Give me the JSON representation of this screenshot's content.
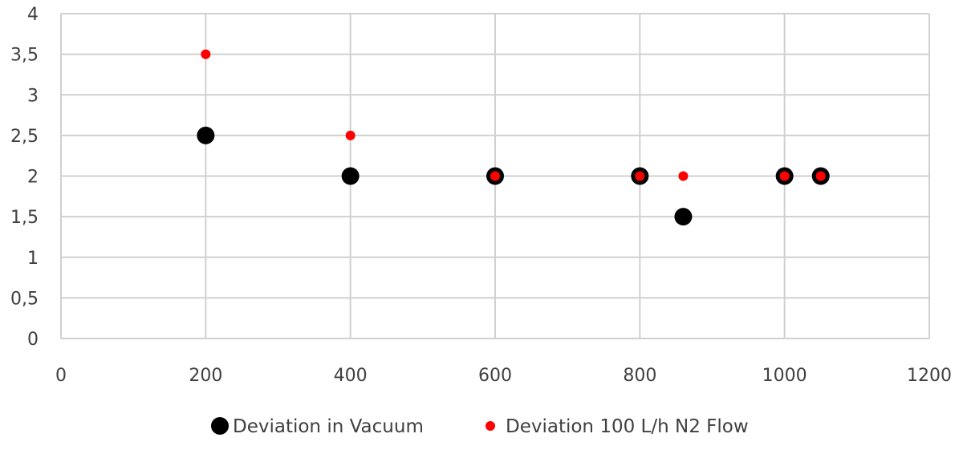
{
  "chart_data": {
    "type": "scatter",
    "title": "",
    "xlabel": "",
    "ylabel": "",
    "xlim": [
      0,
      1200
    ],
    "ylim": [
      0,
      4
    ],
    "x_ticks": [
      0,
      200,
      400,
      600,
      800,
      1000,
      1200
    ],
    "x_tick_labels": [
      "0",
      "200",
      "400",
      "600",
      "800",
      "1000",
      "1200"
    ],
    "y_ticks": [
      0,
      0.5,
      1,
      1.5,
      2,
      2.5,
      3,
      3.5,
      4
    ],
    "y_tick_labels": [
      "0",
      "0,5",
      "1",
      "1,5",
      "2",
      "2,5",
      "3",
      "3,5",
      "4"
    ],
    "grid": true,
    "legend_position": "bottom",
    "series": [
      {
        "name": "Deviation in Vacuum",
        "color": "#000000",
        "points": [
          {
            "x": 200,
            "y": 2.5
          },
          {
            "x": 400,
            "y": 2
          },
          {
            "x": 600,
            "y": 2
          },
          {
            "x": 800,
            "y": 2
          },
          {
            "x": 860,
            "y": 1.5
          },
          {
            "x": 1000,
            "y": 2
          },
          {
            "x": 1050,
            "y": 2
          }
        ]
      },
      {
        "name": "Deviation 100 L/h N2 Flow",
        "color": "#ff0000",
        "points": [
          {
            "x": 200,
            "y": 3.5
          },
          {
            "x": 400,
            "y": 2.5
          },
          {
            "x": 600,
            "y": 2
          },
          {
            "x": 800,
            "y": 2
          },
          {
            "x": 860,
            "y": 2
          },
          {
            "x": 1000,
            "y": 2
          },
          {
            "x": 1050,
            "y": 2
          }
        ]
      }
    ]
  }
}
